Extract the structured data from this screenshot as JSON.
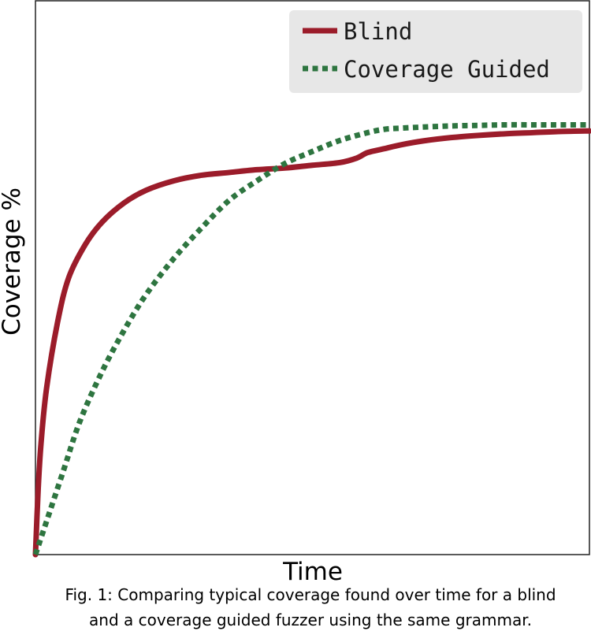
{
  "chart_data": {
    "type": "line",
    "xlabel": "Time",
    "ylabel": "Coverage %",
    "xlim": [
      0,
      1
    ],
    "ylim": [
      0,
      1
    ],
    "grid": false,
    "ticks": false,
    "legend_position": "top-right",
    "series": [
      {
        "name": "Blind",
        "style": "solid",
        "color": "#9b1c2a",
        "x": [
          0,
          0.005,
          0.01,
          0.02,
          0.04,
          0.06,
          0.09,
          0.12,
          0.16,
          0.2,
          0.25,
          0.3,
          0.35,
          0.4,
          0.45,
          0.5,
          0.55,
          0.58,
          0.6,
          0.63,
          0.66,
          0.7,
          0.75,
          0.8,
          0.85,
          0.9,
          0.95,
          1.0
        ],
        "y": [
          0.0,
          0.12,
          0.2,
          0.3,
          0.42,
          0.5,
          0.56,
          0.6,
          0.635,
          0.658,
          0.675,
          0.685,
          0.69,
          0.695,
          0.698,
          0.703,
          0.708,
          0.716,
          0.726,
          0.733,
          0.74,
          0.747,
          0.753,
          0.757,
          0.76,
          0.762,
          0.764,
          0.765
        ]
      },
      {
        "name": "Coverage Guided",
        "style": "dotted",
        "color": "#2e7540",
        "x": [
          0,
          0.02,
          0.05,
          0.08,
          0.12,
          0.16,
          0.2,
          0.25,
          0.3,
          0.35,
          0.4,
          0.45,
          0.5,
          0.55,
          0.6,
          0.63,
          0.66,
          0.7,
          0.75,
          0.8,
          0.85,
          0.9,
          0.95,
          1.0
        ],
        "y": [
          0.0,
          0.06,
          0.15,
          0.24,
          0.33,
          0.405,
          0.47,
          0.535,
          0.59,
          0.64,
          0.675,
          0.706,
          0.728,
          0.748,
          0.762,
          0.768,
          0.77,
          0.772,
          0.774,
          0.775,
          0.776,
          0.776,
          0.776,
          0.776
        ]
      }
    ]
  },
  "caption": {
    "line1": "Fig. 1: Comparing typical coverage found over time for a blind",
    "line2": "and a coverage guided fuzzer using the same grammar."
  }
}
